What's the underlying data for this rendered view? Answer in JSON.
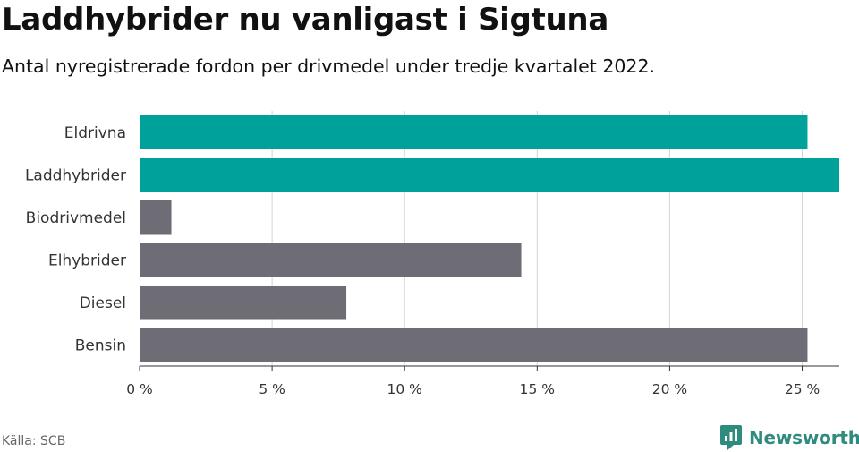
{
  "header": {
    "title": "Laddhybrider nu vanligast i Sigtuna",
    "subtitle": "Antal nyregistrerade fordon per drivmedel under tredje kvartalet 2022."
  },
  "footer": {
    "source": "Källa: SCB",
    "brand": "Newsworthy"
  },
  "colors": {
    "highlight": "#00a19a",
    "default": "#6e6d75",
    "grid": "#d4d4d4",
    "brand": "#2e8b7e"
  },
  "chart_data": {
    "type": "bar",
    "orientation": "horizontal",
    "title": "Laddhybrider nu vanligast i Sigtuna",
    "subtitle": "Antal nyregistrerade fordon per drivmedel under tredje kvartalet 2022.",
    "xlabel": "",
    "ylabel": "",
    "categories": [
      "Eldrivna",
      "Laddhybrider",
      "Biodrivmedel",
      "Elhybrider",
      "Diesel",
      "Bensin"
    ],
    "values": [
      25.2,
      26.4,
      1.2,
      14.4,
      7.8,
      25.2
    ],
    "highlighted": [
      true,
      true,
      false,
      false,
      false,
      false
    ],
    "xlim": [
      0,
      26.4
    ],
    "xticks": [
      0,
      5,
      10,
      15,
      20,
      25
    ],
    "xtick_labels": [
      "0 %",
      "5 %",
      "10 %",
      "15 %",
      "20 %",
      "25 %"
    ],
    "grid": true,
    "unit": "%"
  }
}
